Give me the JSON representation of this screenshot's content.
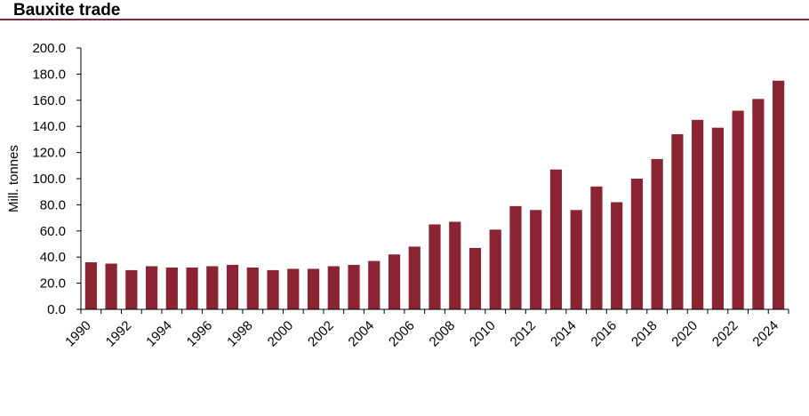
{
  "chart_data": {
    "type": "bar",
    "title": "Bauxite trade",
    "ylabel": "Mill. tonnes",
    "xlabel": "",
    "ylim": [
      0,
      200
    ],
    "yticks": [
      "0.0",
      "20.0",
      "40.0",
      "60.0",
      "80.0",
      "100.0",
      "120.0",
      "140.0",
      "160.0",
      "180.0",
      "200.0"
    ],
    "xtick_labels": [
      "1990",
      "1992",
      "1994",
      "1996",
      "1998",
      "2000",
      "2002",
      "2004",
      "2006",
      "2008",
      "2010",
      "2012",
      "2014",
      "2016",
      "2018",
      "2020",
      "2022",
      "2024"
    ],
    "categories": [
      "1990",
      "1991",
      "1992",
      "1993",
      "1994",
      "1995",
      "1996",
      "1997",
      "1998",
      "1999",
      "2000",
      "2001",
      "2002",
      "2003",
      "2004",
      "2005",
      "2006",
      "2007",
      "2008",
      "2009",
      "2010",
      "2011",
      "2012",
      "2013",
      "2014",
      "2015",
      "2016",
      "2017",
      "2018",
      "2019",
      "2020",
      "2021",
      "2022",
      "2023",
      "2024"
    ],
    "values": [
      36,
      35,
      30,
      33,
      32,
      32,
      33,
      34,
      32,
      30,
      31,
      31,
      33,
      34,
      37,
      42,
      48,
      65,
      67,
      47,
      61,
      79,
      76,
      107,
      76,
      94,
      82,
      100,
      115,
      134,
      145,
      139,
      152,
      161,
      175
    ],
    "bar_color": "#8b2432",
    "grid": false,
    "legend": "none"
  }
}
